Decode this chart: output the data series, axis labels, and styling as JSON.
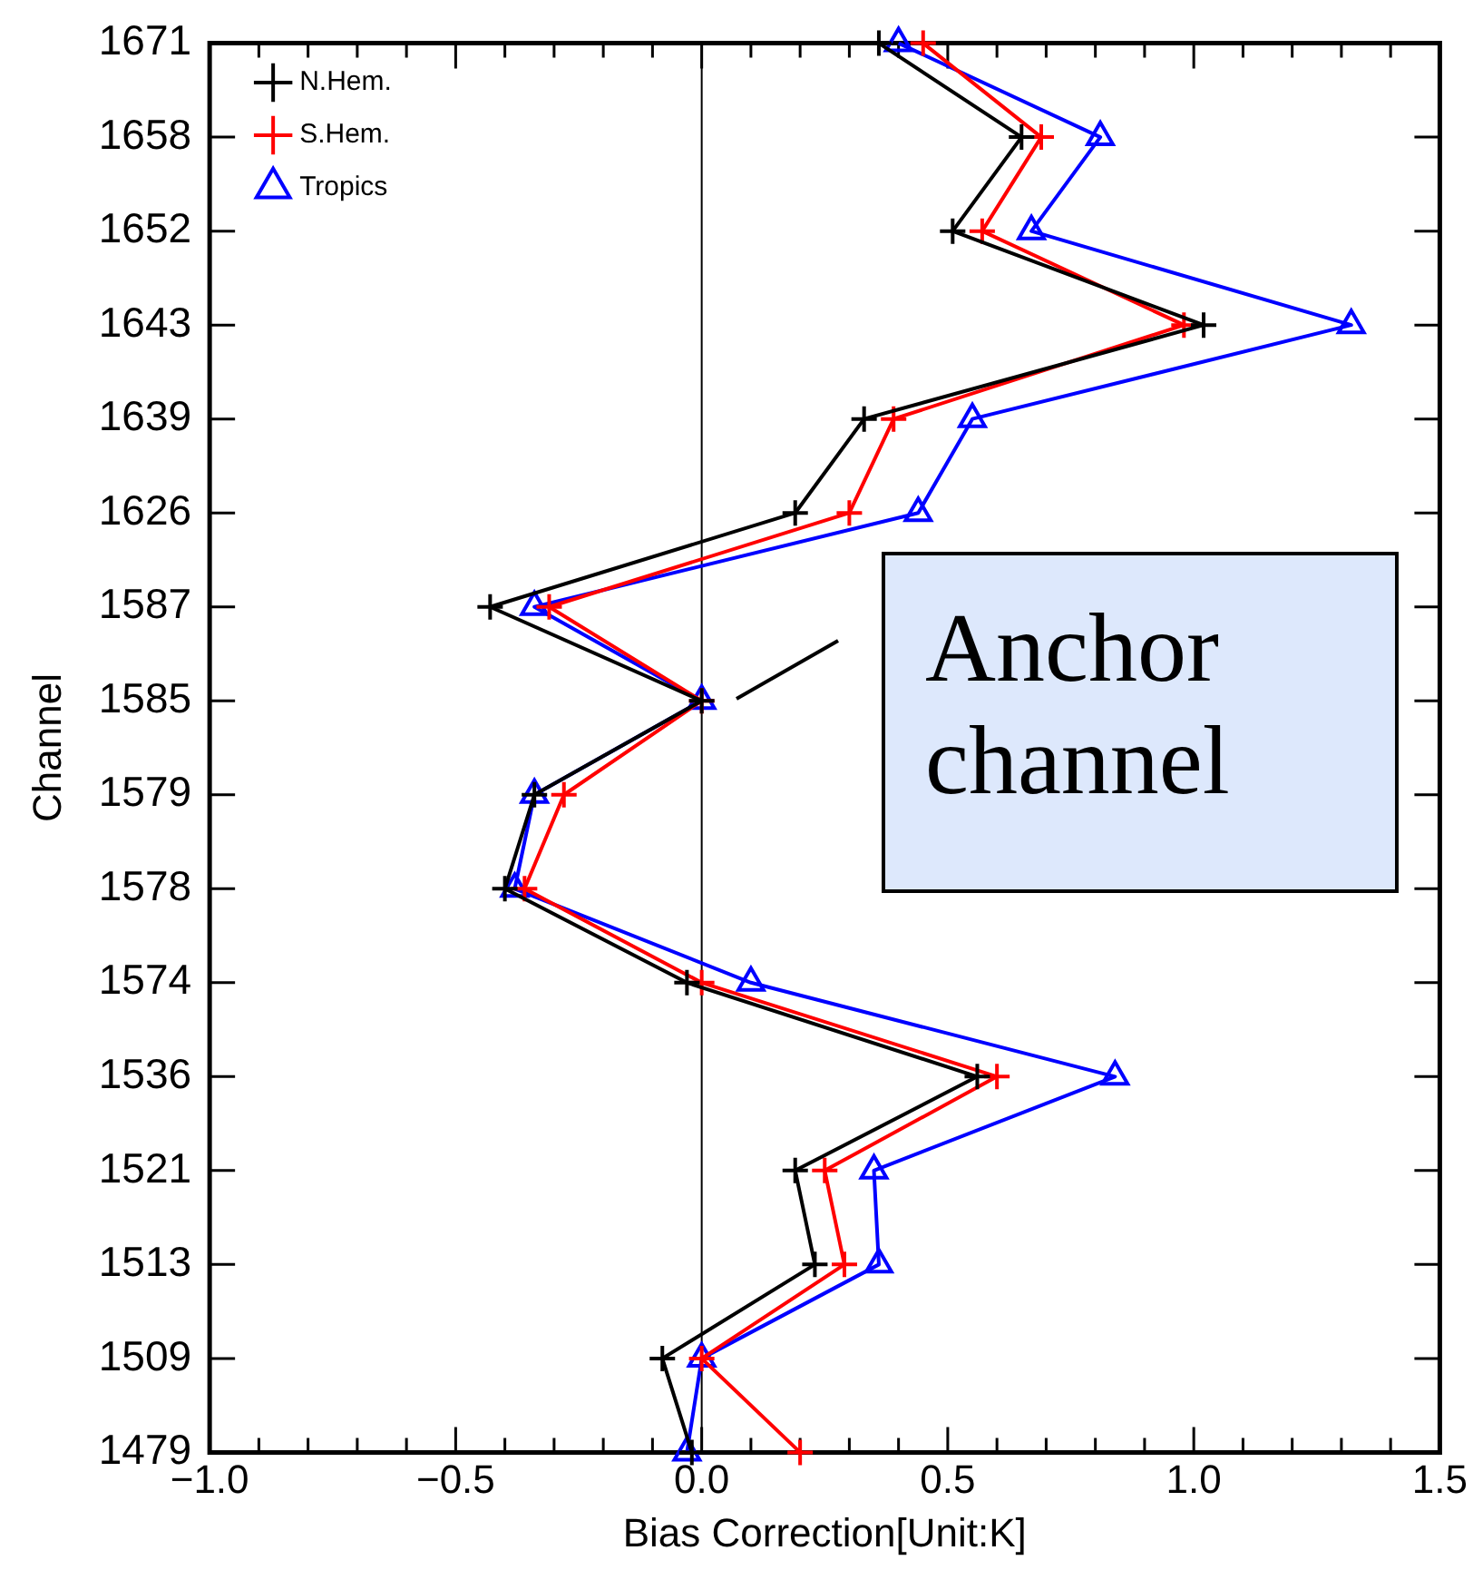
{
  "chart_data": {
    "type": "line",
    "orientation": "horizontal",
    "xlabel": "Bias Correction[Unit:K]",
    "ylabel": "Channel",
    "categories": [
      "1671",
      "1658",
      "1652",
      "1643",
      "1639",
      "1626",
      "1587",
      "1585",
      "1579",
      "1578",
      "1574",
      "1536",
      "1521",
      "1513",
      "1509",
      "1479"
    ],
    "series": [
      {
        "name": "N.Hem.",
        "color": "#000000",
        "marker": "cross",
        "values": [
          0.36,
          0.65,
          0.51,
          1.02,
          0.33,
          0.19,
          -0.43,
          0,
          -0.34,
          -0.4,
          -0.03,
          0.56,
          0.19,
          0.23,
          -0.08,
          -0.02
        ]
      },
      {
        "name": "S.Hem.",
        "color": "#ff0000",
        "marker": "cross",
        "values": [
          0.45,
          0.69,
          0.57,
          0.98,
          0.39,
          0.3,
          -0.31,
          0,
          -0.28,
          -0.36,
          0,
          0.6,
          0.25,
          0.29,
          0,
          0.2
        ]
      },
      {
        "name": "Tropics",
        "color": "#0000ff",
        "marker": "triangle",
        "values": [
          0.4,
          0.81,
          0.67,
          1.32,
          0.55,
          0.44,
          -0.34,
          0,
          -0.34,
          -0.38,
          0.1,
          0.84,
          0.35,
          0.36,
          0,
          -0.03
        ]
      }
    ],
    "xlim": [
      -1,
      1.5
    ],
    "xticks": [
      {
        "value": -1,
        "label": "−1.0"
      },
      {
        "value": -0.9,
        "label": null
      },
      {
        "value": -0.8,
        "label": null
      },
      {
        "value": -0.7,
        "label": null
      },
      {
        "value": -0.6,
        "label": null
      },
      {
        "value": -0.5,
        "label": "−0.5"
      },
      {
        "value": -0.4,
        "label": null
      },
      {
        "value": -0.3,
        "label": null
      },
      {
        "value": -0.2,
        "label": null
      },
      {
        "value": -0.1,
        "label": null
      },
      {
        "value": 0,
        "label": "0.0"
      },
      {
        "value": 0.1,
        "label": null
      },
      {
        "value": 0.2,
        "label": null
      },
      {
        "value": 0.3,
        "label": null
      },
      {
        "value": 0.4,
        "label": null
      },
      0.5,
      {
        "value": 0.6,
        "label": null
      },
      {
        "value": 0.7,
        "label": null
      },
      {
        "value": 0.8,
        "label": null
      },
      {
        "value": 0.9,
        "label": null
      },
      {
        "value": 1,
        "label": "1.0"
      },
      {
        "value": 1.1,
        "label": null
      },
      {
        "value": 1.2,
        "label": null
      },
      {
        "value": 1.3,
        "label": null
      },
      {
        "value": 1.4,
        "label": null
      },
      1.5
    ],
    "ref_lines": [
      {
        "axis": "x",
        "value": 0,
        "color": "#000000"
      }
    ],
    "annotations": [
      {
        "text": "Anchor channel",
        "x": 0,
        "y": "1585"
      }
    ],
    "legend": "top left",
    "grid": false
  }
}
